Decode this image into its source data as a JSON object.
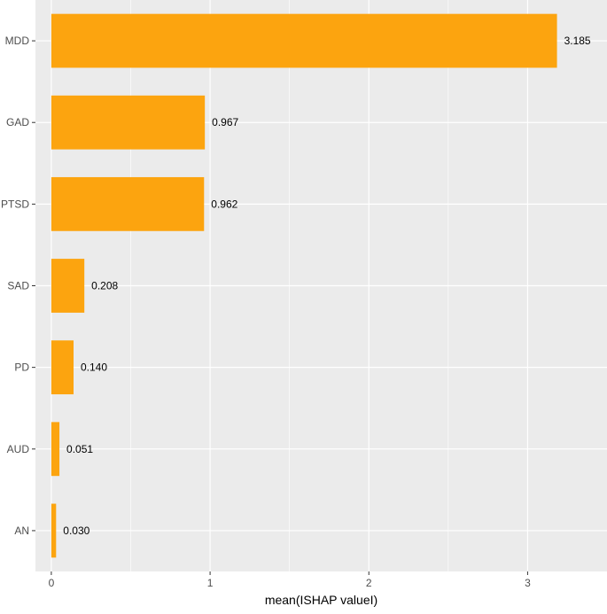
{
  "chart_data": {
    "type": "bar",
    "orientation": "horizontal",
    "categories": [
      "MDD",
      "GAD",
      "PTSD",
      "SAD",
      "PD",
      "AUD",
      "AN"
    ],
    "values": [
      3.185,
      0.967,
      0.962,
      0.208,
      0.14,
      0.051,
      0.03
    ],
    "data_labels": [
      "3.185",
      "0.967",
      "0.962",
      "0.208",
      "0.140",
      "0.051",
      "0.030"
    ],
    "xlabel": "mean(ISHAP valueI)",
    "ylabel": "",
    "xlim": [
      -0.1,
      3.5
    ],
    "x_ticks": [
      0,
      1,
      2,
      3
    ],
    "x_tick_labels": [
      "0",
      "1",
      "2",
      "3"
    ],
    "grid": true,
    "colors": {
      "bar": "#FCA40F",
      "panel_background": "#EBEBEB",
      "grid": "#FFFFFF"
    }
  }
}
